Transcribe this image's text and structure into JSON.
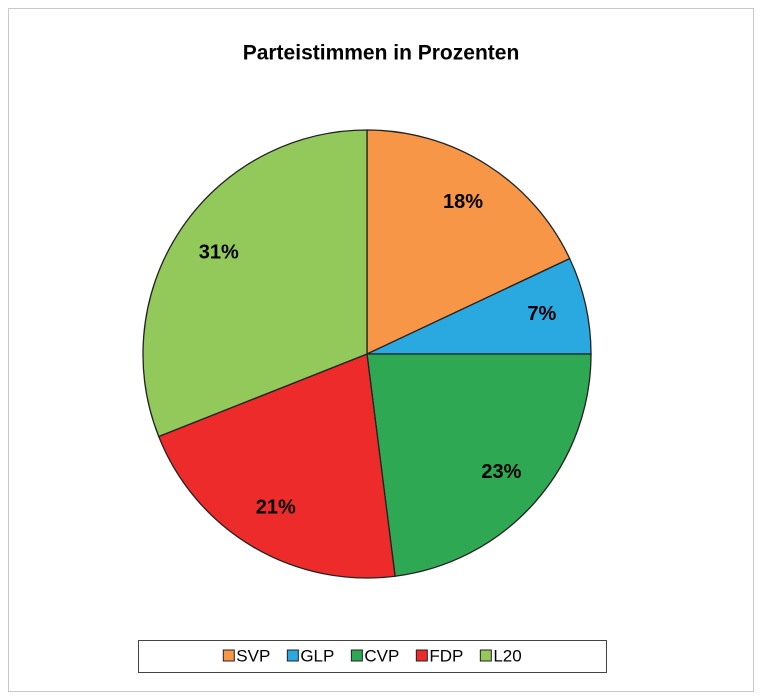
{
  "chart_data": {
    "type": "pie",
    "title": "Parteistimmen in Prozenten",
    "categories": [
      "SVP",
      "GLP",
      "CVP",
      "FDP",
      "L20"
    ],
    "values": [
      18,
      7,
      23,
      21,
      31
    ],
    "value_labels": [
      "18%",
      "7%",
      "23%",
      "21%",
      "31%"
    ],
    "colors": [
      "#f79646",
      "#2aa8e0",
      "#2ea852",
      "#ee2b2b",
      "#92c95a"
    ],
    "legend": "bottom"
  }
}
